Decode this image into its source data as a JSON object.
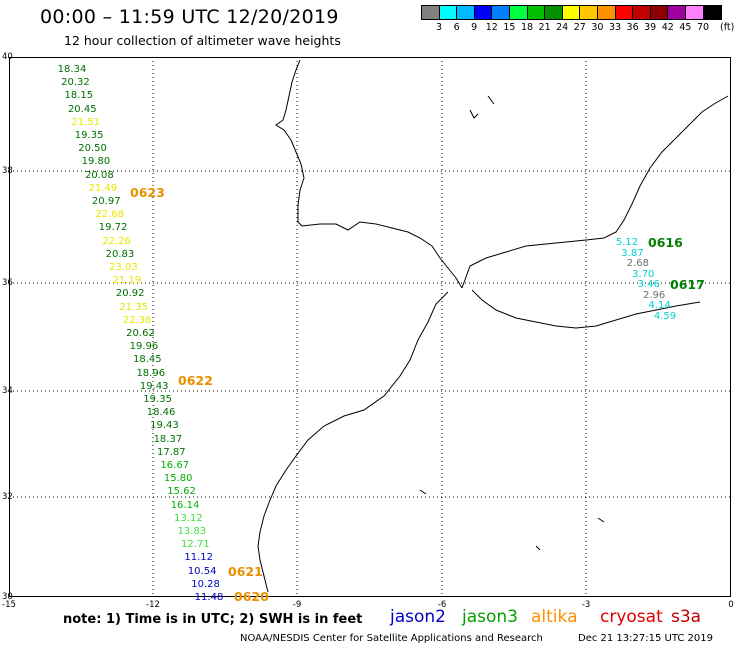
{
  "header": {
    "title": "00:00 – 11:59 UTC 12/20/2019",
    "subtitle": "12 hour collection of altimeter wave heights"
  },
  "legend": {
    "unit": "(ft)",
    "colors": [
      "#808080",
      "#00ffff",
      "#00b8ff",
      "#0000ff",
      "#0080ff",
      "#00ff40",
      "#00c000",
      "#009000",
      "#ffff00",
      "#ffc800",
      "#ff9000",
      "#ff0000",
      "#c00000",
      "#900000",
      "#a000a0",
      "#ff80ff",
      "#000000"
    ],
    "labels": [
      "3",
      "6",
      "9",
      "12",
      "15",
      "18",
      "21",
      "24",
      "27",
      "30",
      "33",
      "36",
      "39",
      "42",
      "45",
      "70"
    ]
  },
  "axes": {
    "lon_ticks": [
      "-15",
      "-12",
      "-9",
      "-6",
      "-3",
      "0"
    ],
    "lat_ticks": [
      "40",
      "38",
      "36",
      "34",
      "32",
      "30"
    ]
  },
  "observations": [
    {
      "v": "18.34",
      "c": "#007000"
    },
    {
      "v": "20.32",
      "c": "#007000"
    },
    {
      "v": "18.15",
      "c": "#007000"
    },
    {
      "v": "20.45",
      "c": "#007000"
    },
    {
      "v": "21.51",
      "c": "#e8e800"
    },
    {
      "v": "19.35",
      "c": "#007000"
    },
    {
      "v": "20.50",
      "c": "#007000"
    },
    {
      "v": "19.80",
      "c": "#007000"
    },
    {
      "v": "20.08",
      "c": "#007000"
    },
    {
      "v": "21.49",
      "c": "#e8e800"
    },
    {
      "v": "20.97",
      "c": "#007000"
    },
    {
      "v": "22.68",
      "c": "#e8e800"
    },
    {
      "v": "19.72",
      "c": "#007000"
    },
    {
      "v": "22.26",
      "c": "#e8e800"
    },
    {
      "v": "20.83",
      "c": "#007000"
    },
    {
      "v": "23.03",
      "c": "#e8e800"
    },
    {
      "v": "21.19",
      "c": "#e8e800"
    },
    {
      "v": "20.92",
      "c": "#007000"
    },
    {
      "v": "21.35",
      "c": "#e8e800"
    },
    {
      "v": "22.36",
      "c": "#e8e800"
    },
    {
      "v": "20.62",
      "c": "#007000"
    },
    {
      "v": "19.96",
      "c": "#007000"
    },
    {
      "v": "18.45",
      "c": "#007000"
    },
    {
      "v": "18.96",
      "c": "#007000"
    },
    {
      "v": "19.43",
      "c": "#007000"
    },
    {
      "v": "19.35",
      "c": "#007000"
    },
    {
      "v": "18.46",
      "c": "#007000"
    },
    {
      "v": "19.43",
      "c": "#007000"
    },
    {
      "v": "18.37",
      "c": "#007000"
    },
    {
      "v": "17.87",
      "c": "#007000"
    },
    {
      "v": "16.67",
      "c": "#00b000"
    },
    {
      "v": "15.80",
      "c": "#00b000"
    },
    {
      "v": "15.62",
      "c": "#00b000"
    },
    {
      "v": "16.14",
      "c": "#00b000"
    },
    {
      "v": "13.12",
      "c": "#40e040"
    },
    {
      "v": "13.83",
      "c": "#40e040"
    },
    {
      "v": "12.71",
      "c": "#40e040"
    },
    {
      "v": "11.12",
      "c": "#0000c0"
    },
    {
      "v": "10.54",
      "c": "#0000c0"
    },
    {
      "v": "10.28",
      "c": "#0000c0"
    },
    {
      "v": "11.48",
      "c": "#0000c0"
    }
  ],
  "east_observations": [
    {
      "v": "5.12",
      "c": "#00d0d0"
    },
    {
      "v": "3.87",
      "c": "#00d0d0"
    },
    {
      "v": "2.68",
      "c": "#707070"
    },
    {
      "v": "3.70",
      "c": "#00d0d0"
    },
    {
      "v": "3.46",
      "c": "#00d0d0"
    },
    {
      "v": "2.96",
      "c": "#707070"
    },
    {
      "v": "4.14",
      "c": "#00d0d0"
    },
    {
      "v": "4.59",
      "c": "#00d0d0"
    }
  ],
  "pass_labels": [
    {
      "t": "0623",
      "c": "#e89000"
    },
    {
      "t": "0622",
      "c": "#e89000"
    },
    {
      "t": "0621",
      "c": "#e89000"
    },
    {
      "t": "0620",
      "c": "#e89000"
    },
    {
      "t": "0616",
      "c": "#008000"
    },
    {
      "t": "0617",
      "c": "#008000"
    }
  ],
  "footer": {
    "note": "note: 1) Time is in UTC; 2) SWH is in feet",
    "satellites": [
      {
        "name": "jason2",
        "color": "#0000cc"
      },
      {
        "name": "jason3",
        "color": "#00a000"
      },
      {
        "name": "altika",
        "color": "#ff9000"
      },
      {
        "name": "cryosat",
        "color": "#e00000"
      },
      {
        "name": "s3a",
        "color": "#c00000"
      }
    ],
    "credit": "NOAA/NESDIS Center for Satellite Applications and Research",
    "timestamp": "Dec 21 13:27:15 UTC 2019"
  }
}
